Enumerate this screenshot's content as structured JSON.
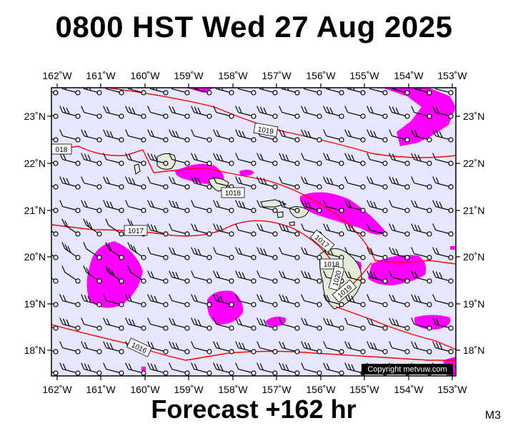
{
  "title": "0800 HST Wed 27 Aug 2025",
  "footer": "Forecast +162 hr",
  "model_code": "M3",
  "copyright": "Copyright metvuw.com",
  "colors": {
    "ocean": "#e6e6ff",
    "rain": "#ff00ff",
    "land": "#e2ecd6",
    "isobar": "#ff0000",
    "wind": "#000000"
  },
  "map_data": {
    "lon_labels": [
      "162˚W",
      "161˚W",
      "160˚W",
      "159˚W",
      "158˚W",
      "157˚W",
      "156˚W",
      "155˚W",
      "154˚W",
      "153˚W"
    ],
    "lat_labels": [
      "23˚N",
      "22˚N",
      "21˚N",
      "20˚N",
      "19˚N",
      "18˚N"
    ],
    "isobar_labels": [
      "1019",
      "018",
      "1018",
      "1017",
      "1017",
      "1018",
      "1020",
      "1019",
      "1016"
    ]
  }
}
